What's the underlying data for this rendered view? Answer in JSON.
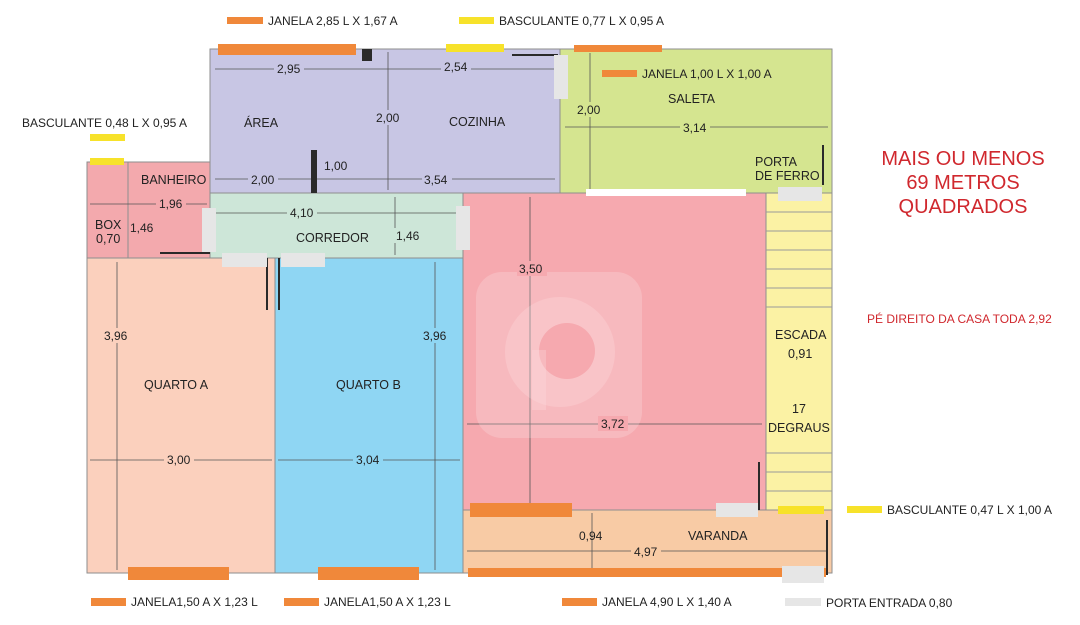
{
  "colors": {
    "area_cozinha": "#c8c6e4",
    "saleta": "#d5e590",
    "banheiro": "#f3a9ad",
    "corredor": "#cde6d8",
    "quarto_a": "#fbd0bd",
    "quarto_b": "#8fd6f3",
    "sala": "#f6a9af",
    "escada": "#fbf2a4",
    "varanda": "#f8cba5",
    "window": "#f0883a",
    "basculante": "#f7e22a",
    "door": "#e6e6e6",
    "note_text": "#d0282e"
  },
  "legend": {
    "janela_top": "JANELA 2,85 L X 1,67 A",
    "basculante_top": "BASCULANTE 0,77 L X 0,95 A",
    "janela_saleta": "JANELA 1,00 L X 1,00 A",
    "basculante_left": "BASCULANTE 0,48 L X 0,95 A",
    "basculante_right": "BASCULANTE 0,47 L X 1,00 A",
    "janela_a": "JANELA1,50 A X 1,23 L",
    "janela_b": "JANELA1,50 A X 1,23 L",
    "janela_varanda": "JANELA 4,90 L X 1,40 A",
    "porta_entrada": "PORTA ENTRADA 0,80"
  },
  "rooms": {
    "area": "ÁREA",
    "cozinha": "COZINHA",
    "saleta": "SALETA",
    "porta_ferro_1": "PORTA",
    "porta_ferro_2": "DE FERRO",
    "banheiro": "BANHEIRO",
    "box_1": "BOX",
    "box_2": "0,70",
    "corredor": "CORREDOR",
    "quarto_a": "QUARTO A",
    "quarto_b": "QUARTO B",
    "escada": "ESCADA",
    "escada_w": "0,91",
    "degraus_1": "17",
    "degraus_2": "DEGRAUS",
    "varanda": "VARANDA"
  },
  "dims": {
    "area_w": "2,95",
    "cozinha_w": "2,54",
    "area_h": "2,00",
    "saleta_h": "2,00",
    "saleta_w": "3,14",
    "wall_100": "1,00",
    "area_bottom": "2,00",
    "cozinha_bottom": "3,54",
    "banheiro_w": "1,96",
    "banheiro_h": "1,46",
    "corredor_w": "4,10",
    "corredor_h": "1,46",
    "sala_h": "3,50",
    "quarto_a_h": "3,96",
    "quarto_b_h": "3,96",
    "sala_w": "3,72",
    "quarto_a_w": "3,00",
    "quarto_b_w": "3,04",
    "varanda_h": "0,94",
    "varanda_w": "4,97"
  },
  "notes": {
    "area_line1": "MAIS OU MENOS",
    "area_line2": "69 METROS",
    "area_line3": "QUADRADOS",
    "pe_direito": "PÉ DIREITO DA CASA TODA 2,92"
  }
}
